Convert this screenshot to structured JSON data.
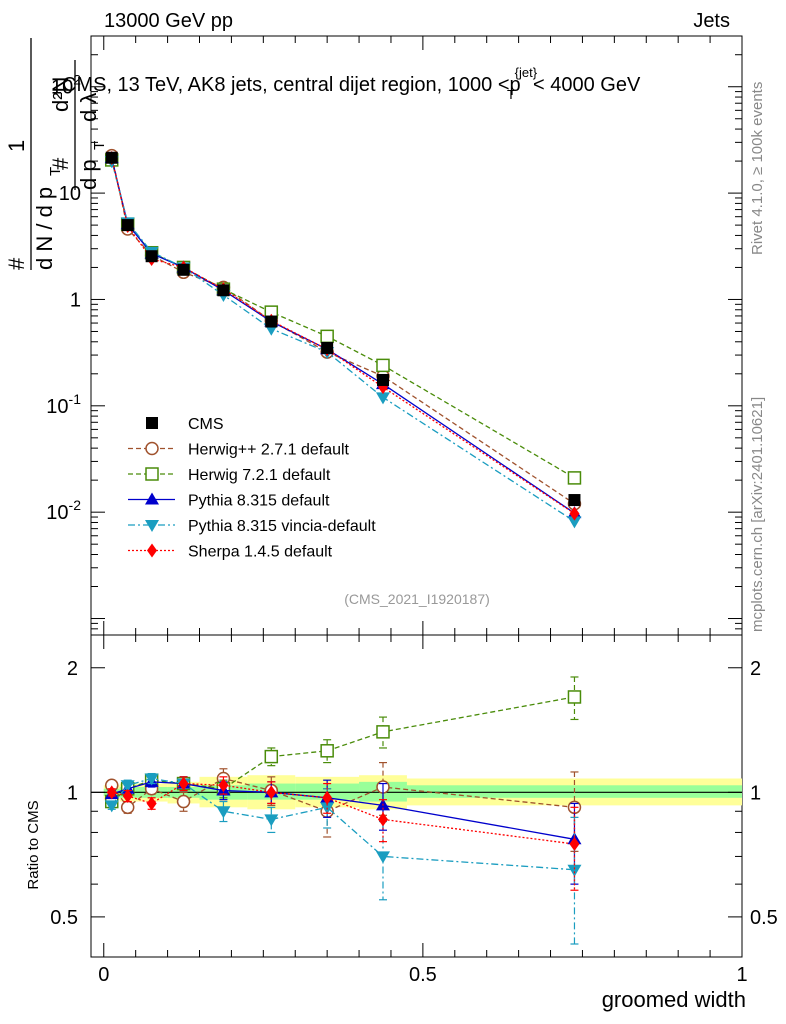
{
  "header": {
    "left": "13000 GeV pp",
    "right": "Jets"
  },
  "side_labels": {
    "rivet": "Rivet 4.1.0, ≥ 100k events",
    "mcplots": "mcplots.cern.ch [arXiv:2401.10621]"
  },
  "chart_data": [
    {
      "type": "line",
      "panel": "main",
      "title": "CMS, 13 TeV, AK8 jets, central dijet region, 1000 <p_T^{jet}< 4000 GeV",
      "ylabel": "1/dN/dp_T · d²N/dp_T dλ",
      "yscale": "log",
      "ylim": [
        0.0007,
        300
      ],
      "xlim": [
        -0.02,
        1.0
      ],
      "yticks": [
        {
          "v": 0.01,
          "label": "10^-2"
        },
        {
          "v": 0.1,
          "label": "10^-1"
        },
        {
          "v": 1,
          "label": "1"
        },
        {
          "v": 10,
          "label": "10"
        },
        {
          "v": 100,
          "label": "10^2"
        }
      ],
      "watermark": "(CMS_2021_I1920187)",
      "x": [
        0.0125,
        0.0375,
        0.075,
        0.125,
        0.1875,
        0.2625,
        0.35,
        0.4375,
        0.7375
      ],
      "series": [
        {
          "name": "CMS",
          "color": "#000000",
          "marker": "square-filled",
          "dash": "none",
          "values": [
            21.5,
            5.0,
            2.55,
            1.9,
            1.22,
            0.62,
            0.35,
            0.175,
            0.013
          ]
        },
        {
          "name": "Herwig++ 2.7.1 default",
          "color": "#a0522d",
          "marker": "circle-open",
          "dash": "5,3",
          "values": [
            22.5,
            4.6,
            2.6,
            1.8,
            1.3,
            0.63,
            0.32,
            0.19,
            0.012
          ]
        },
        {
          "name": "Herwig 7.2.1 default",
          "color": "#4a8c0a",
          "marker": "square-open",
          "dash": "5,3",
          "values": [
            20.5,
            5.1,
            2.75,
            2.0,
            1.25,
            0.76,
            0.45,
            0.24,
            0.021
          ]
        },
        {
          "name": "Pythia 8.315 default",
          "color": "#0000cc",
          "marker": "triangle-up",
          "dash": "none",
          "values": [
            21.3,
            5.1,
            2.7,
            2.0,
            1.22,
            0.62,
            0.34,
            0.16,
            0.0098
          ]
        },
        {
          "name": "Pythia 8.315 vincia-default",
          "color": "#1a9dc0",
          "marker": "triangle-down",
          "dash": "7,3,2,3",
          "values": [
            20.0,
            5.3,
            2.8,
            2.0,
            1.1,
            0.53,
            0.32,
            0.12,
            0.0082
          ]
        },
        {
          "name": "Sherpa 1.4.5 default",
          "color": "#ff0000",
          "marker": "diamond",
          "dash": "2,2",
          "values": [
            21.4,
            4.9,
            2.4,
            2.0,
            1.25,
            0.63,
            0.34,
            0.15,
            0.0097
          ]
        }
      ]
    },
    {
      "type": "line",
      "panel": "ratio",
      "xlabel": "groomed width",
      "ylabel": "Ratio to CMS",
      "yscale": "log",
      "ylim": [
        0.4,
        2.4
      ],
      "xlim": [
        -0.02,
        1.0
      ],
      "yticks": [
        {
          "v": 0.5,
          "label": "0.5"
        },
        {
          "v": 1,
          "label": "1"
        },
        {
          "v": 2,
          "label": "2"
        }
      ],
      "xticks": [
        {
          "v": 0,
          "label": "0"
        },
        {
          "v": 0.5,
          "label": "0.5"
        },
        {
          "v": 1,
          "label": "1"
        }
      ],
      "x": [
        0.0125,
        0.0375,
        0.075,
        0.125,
        0.1875,
        0.2625,
        0.35,
        0.4375,
        0.7375
      ],
      "bands": [
        {
          "x0": 0.0,
          "x1": 0.025,
          "inner": [
            0.98,
            1.02
          ],
          "outer": [
            0.96,
            1.04
          ]
        },
        {
          "x0": 0.025,
          "x1": 0.05,
          "inner": [
            0.97,
            1.03
          ],
          "outer": [
            0.95,
            1.05
          ]
        },
        {
          "x0": 0.05,
          "x1": 0.1,
          "inner": [
            0.97,
            1.03
          ],
          "outer": [
            0.95,
            1.05
          ]
        },
        {
          "x0": 0.1,
          "x1": 0.15,
          "inner": [
            0.97,
            1.03
          ],
          "outer": [
            0.94,
            1.06
          ]
        },
        {
          "x0": 0.15,
          "x1": 0.225,
          "inner": [
            0.96,
            1.04
          ],
          "outer": [
            0.92,
            1.09
          ]
        },
        {
          "x0": 0.225,
          "x1": 0.3,
          "inner": [
            0.96,
            1.05
          ],
          "outer": [
            0.91,
            1.1
          ]
        },
        {
          "x0": 0.3,
          "x1": 0.4,
          "inner": [
            0.96,
            1.05
          ],
          "outer": [
            0.92,
            1.09
          ]
        },
        {
          "x0": 0.4,
          "x1": 0.475,
          "inner": [
            0.95,
            1.06
          ],
          "outer": [
            0.91,
            1.1
          ]
        },
        {
          "x0": 0.475,
          "x1": 1.0,
          "inner": [
            0.97,
            1.04
          ],
          "outer": [
            0.93,
            1.08
          ]
        }
      ],
      "series": [
        {
          "name": "Herwig++ 2.7.1 default",
          "color": "#a0522d",
          "marker": "circle-open",
          "dash": "5,3",
          "values": [
            1.04,
            0.92,
            1.02,
            0.95,
            1.08,
            1.01,
            0.9,
            1.03,
            0.92
          ],
          "err": [
            0.02,
            0.03,
            0.03,
            0.05,
            0.06,
            0.08,
            0.12,
            0.15,
            0.2
          ]
        },
        {
          "name": "Herwig 7.2.1 default",
          "color": "#4a8c0a",
          "marker": "square-open",
          "dash": "5,3",
          "values": [
            0.95,
            1.02,
            1.07,
            1.05,
            1.02,
            1.22,
            1.26,
            1.4,
            1.7
          ],
          "err": [
            0.02,
            0.03,
            0.03,
            0.04,
            0.05,
            0.06,
            0.08,
            0.12,
            0.2
          ]
        },
        {
          "name": "Pythia 8.315 default",
          "color": "#0000cc",
          "marker": "triangle-up",
          "dash": "none",
          "values": [
            0.99,
            1.02,
            1.06,
            1.05,
            1.01,
            1.0,
            0.97,
            0.93,
            0.77
          ],
          "err": [
            0.02,
            0.03,
            0.03,
            0.04,
            0.05,
            0.06,
            0.1,
            0.12,
            0.17
          ]
        },
        {
          "name": "Pythia 8.315 vincia-default",
          "color": "#1a9dc0",
          "marker": "triangle-down",
          "dash": "7,3,2,3",
          "values": [
            0.93,
            1.04,
            1.08,
            1.05,
            0.9,
            0.86,
            0.92,
            0.7,
            0.65
          ],
          "err": [
            0.02,
            0.03,
            0.03,
            0.04,
            0.05,
            0.06,
            0.1,
            0.15,
            0.22
          ]
        },
        {
          "name": "Sherpa 1.4.5 default",
          "color": "#ff0000",
          "marker": "diamond",
          "dash": "2,2",
          "values": [
            1.0,
            0.98,
            0.94,
            1.05,
            1.04,
            1.0,
            0.97,
            0.86,
            0.75
          ],
          "err": [
            0.02,
            0.03,
            0.03,
            0.04,
            0.05,
            0.06,
            0.08,
            0.1,
            0.17
          ]
        }
      ]
    }
  ]
}
